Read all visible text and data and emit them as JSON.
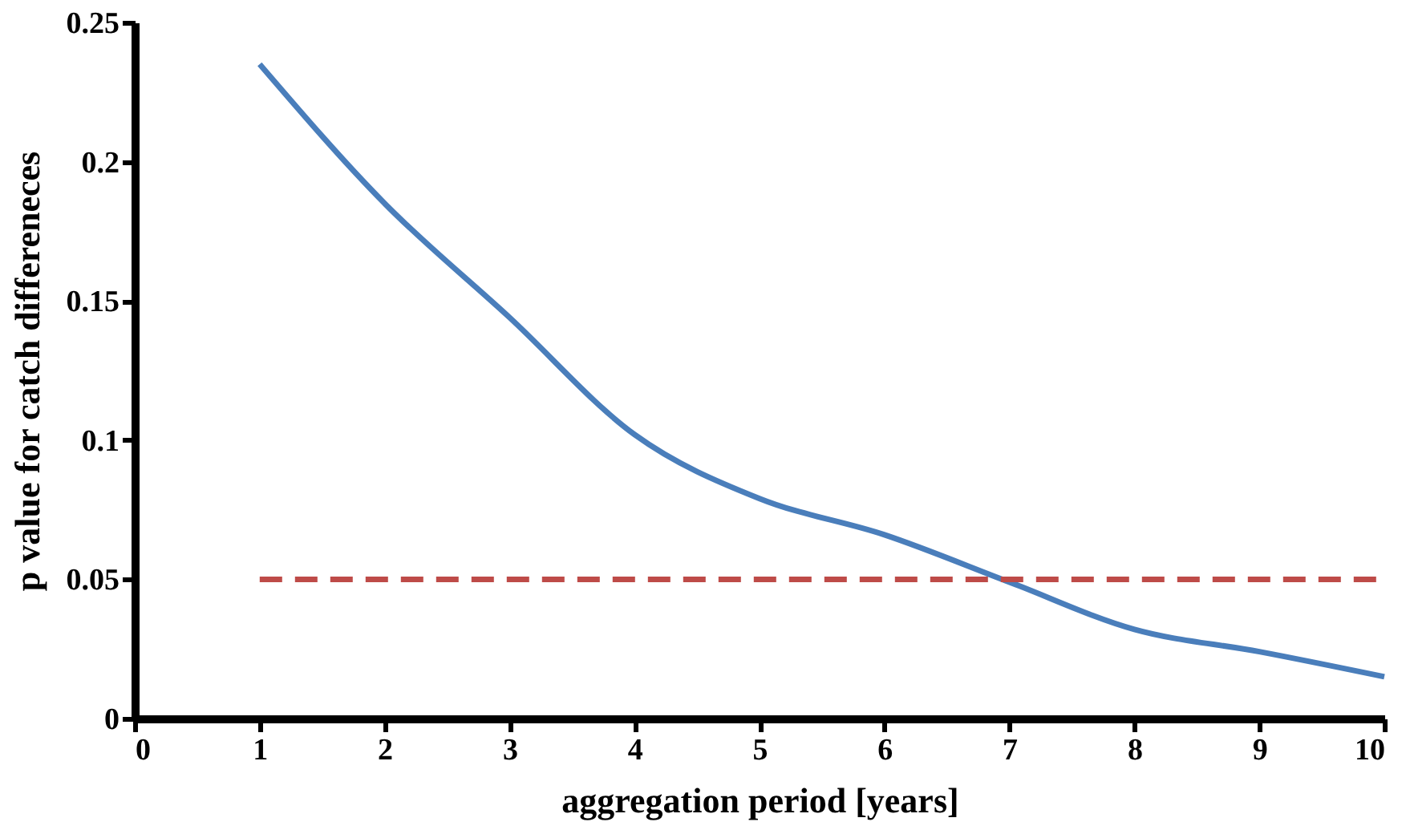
{
  "chart_data": {
    "type": "line",
    "xlabel": "aggregation period [years]",
    "ylabel": "p value for catch differeneces",
    "xlim": [
      0,
      10
    ],
    "xticks": [
      0,
      1,
      2,
      3,
      4,
      5,
      6,
      7,
      8,
      9,
      10
    ],
    "ylim": [
      0,
      0.25
    ],
    "yticks": [
      0,
      0.05,
      0.1,
      0.15,
      0.2,
      0.25
    ],
    "grid": false,
    "marker": "none",
    "series": [
      {
        "color": "#4a7ebb",
        "line_style": "solid",
        "x": [
          1,
          2,
          3,
          4,
          5,
          6,
          7,
          8,
          9,
          10
        ],
        "values": [
          0.235,
          0.185,
          0.144,
          0.102,
          0.079,
          0.066,
          0.049,
          0.032,
          0.024,
          0.015
        ]
      },
      {
        "color": "#be4b48",
        "line_style": "dashed",
        "x": [
          1,
          10
        ],
        "values": [
          0.05,
          0.05
        ]
      }
    ]
  }
}
